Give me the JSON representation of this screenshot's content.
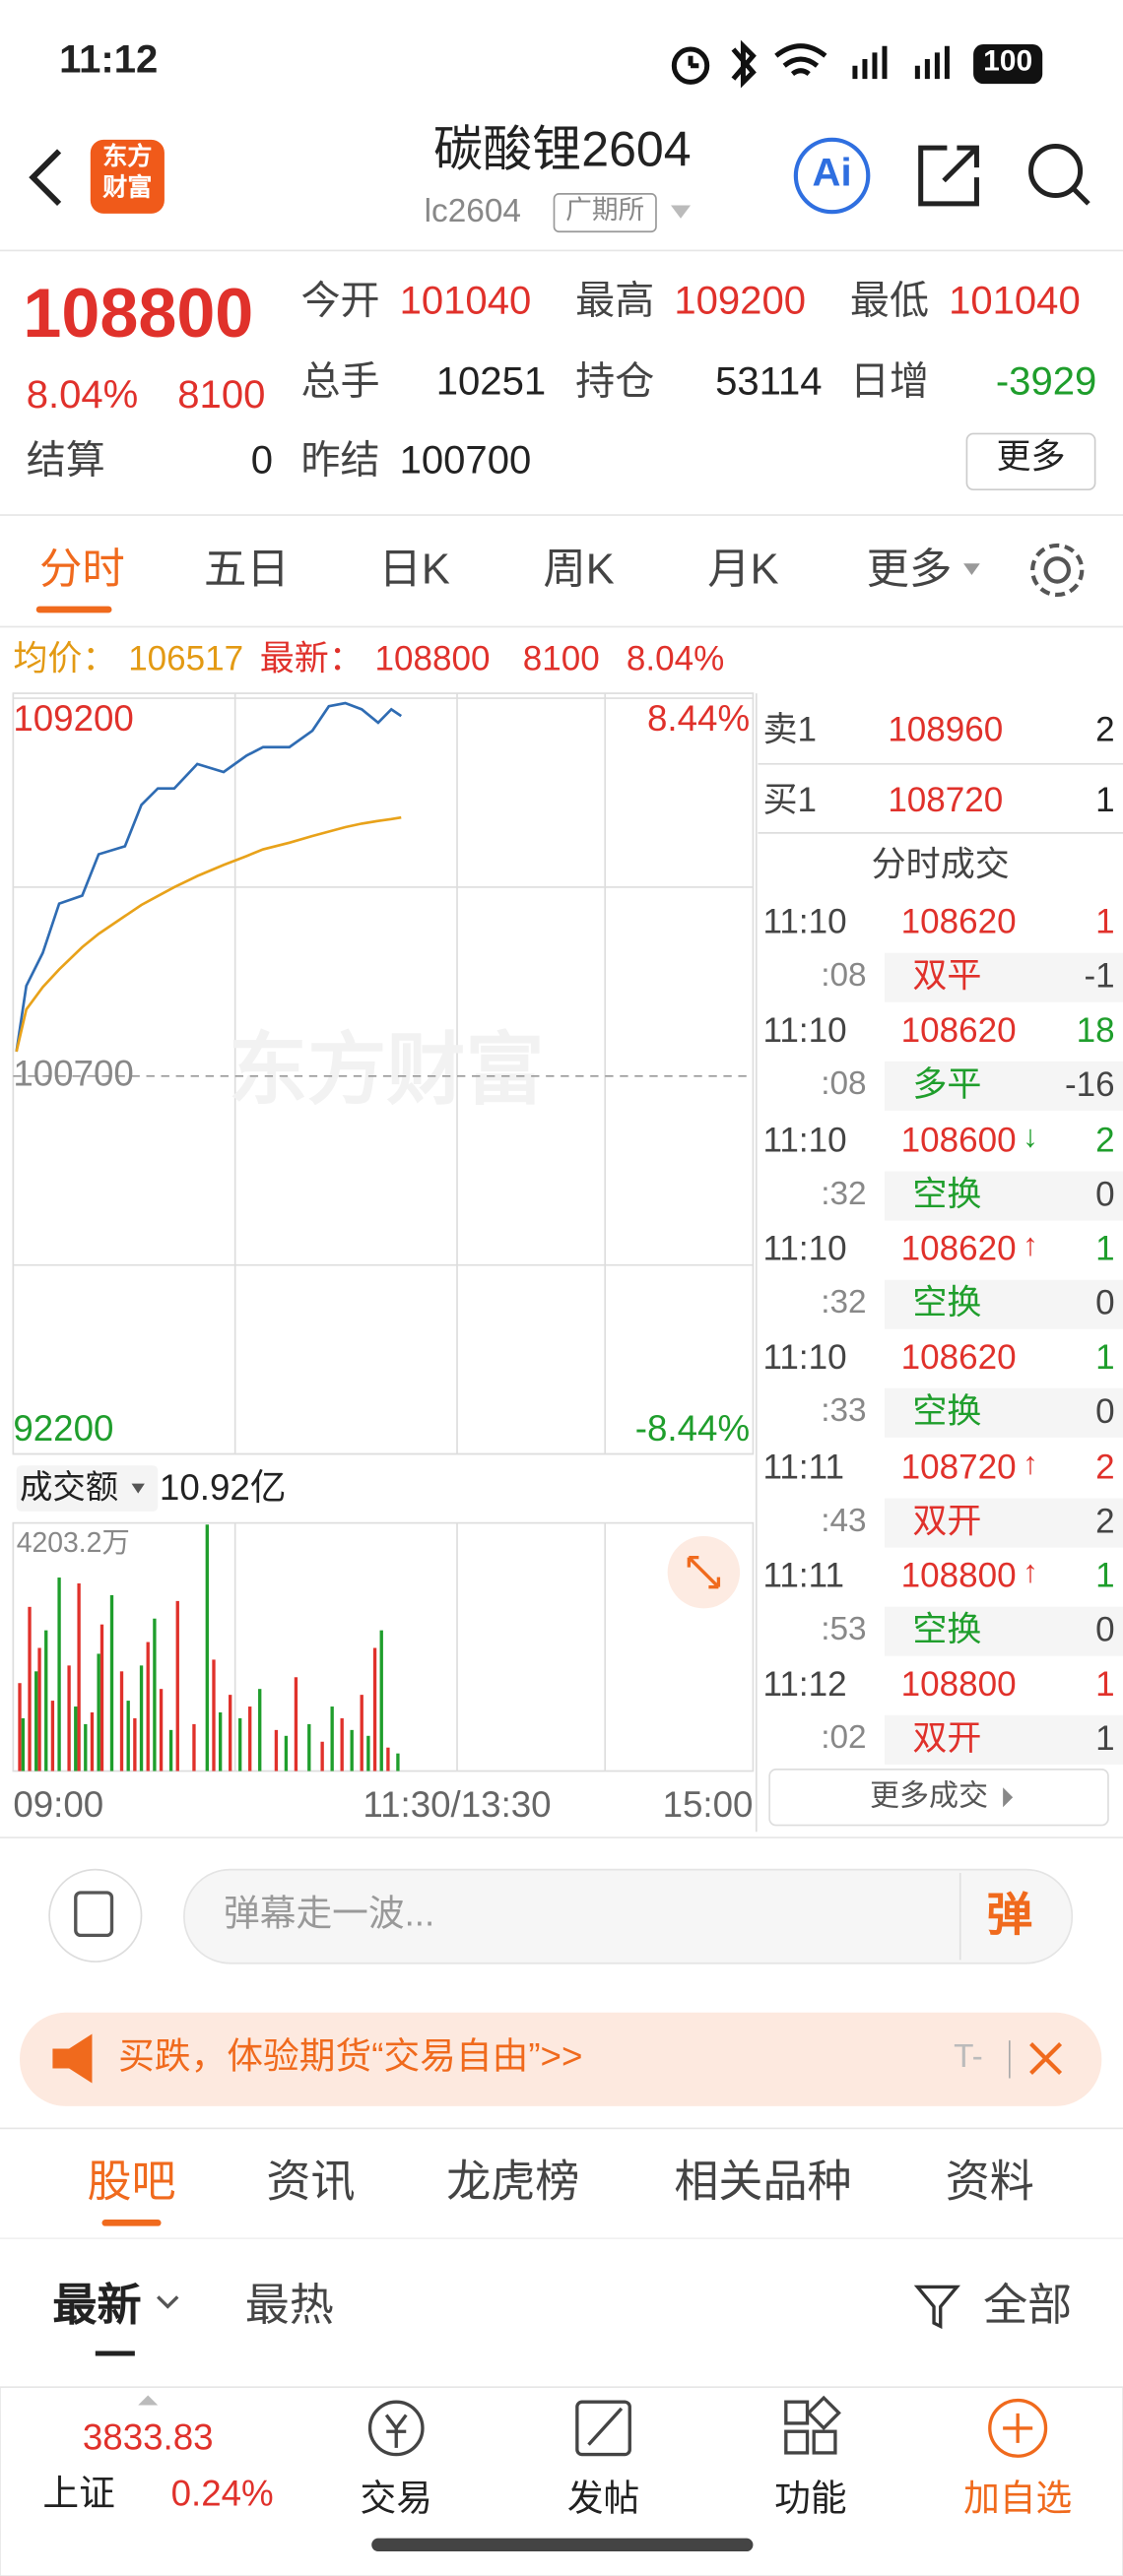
{
  "status": {
    "time": "11:12",
    "battery": "100"
  },
  "header": {
    "logo": [
      "东方",
      "财富"
    ],
    "title": "碳酸锂2604",
    "code": "lc2604",
    "exchange": "广期所"
  },
  "quote": {
    "price": "108800",
    "change_pct": "8.04%",
    "change": "8100",
    "fields": [
      {
        "label": "今开",
        "value": "101040"
      },
      {
        "label": "最高",
        "value": "109200"
      },
      {
        "label": "最低",
        "value": "101040"
      },
      {
        "label": "总手",
        "value": "10251"
      },
      {
        "label": "持仓",
        "value": "53114"
      },
      {
        "label": "日增",
        "value": "-3929"
      },
      {
        "label": "结算",
        "value": "0"
      },
      {
        "label": "昨结",
        "value": "100700"
      }
    ],
    "more": "更多"
  },
  "tabs": [
    "分时",
    "五日",
    "日K",
    "周K",
    "月K",
    "更多"
  ],
  "summary": {
    "avg_label": "均价：",
    "avg": "106517",
    "latest_label": "最新：",
    "latest": "108800",
    "change": "8100",
    "pct": "8.04%"
  },
  "chart_data": [
    {
      "type": "line",
      "watermark": "东方财富",
      "xlim": [
        0,
        225
      ],
      "xticks": [
        {
          "value": 0,
          "label": "09:00"
        },
        {
          "value": 135,
          "label": "11:30/13:30"
        },
        {
          "value": 225,
          "label": "15:00"
        }
      ],
      "ylim": [
        92200,
        109200
      ],
      "yticks": [
        92200,
        100700,
        109200
      ],
      "y2lim": [
        -8.44,
        8.44
      ],
      "y2ticks": [
        {
          "value": -8.44,
          "label": "-8.44%"
        },
        {
          "value": 8.44,
          "label": "8.44%"
        }
      ],
      "x": [
        1,
        4,
        9,
        14,
        21,
        26,
        34,
        39,
        44,
        49,
        56,
        64,
        71,
        76,
        84,
        91,
        96,
        101,
        106,
        111,
        115,
        118
      ],
      "series": [
        {
          "color": "#2f6cb3",
          "values": [
            101250,
            102730,
            103470,
            104580,
            104760,
            105690,
            105870,
            106800,
            107170,
            107170,
            107720,
            107540,
            107910,
            108100,
            108100,
            108470,
            109020,
            109090,
            108950,
            108650,
            108950,
            108800
          ]
        },
        {
          "color": "#e8a21a",
          "values": [
            101250,
            102200,
            102700,
            103100,
            103600,
            103900,
            104300,
            104550,
            104750,
            104950,
            105200,
            105450,
            105650,
            105800,
            105950,
            106100,
            106200,
            106300,
            106380,
            106440,
            106480,
            106517
          ]
        }
      ]
    },
    {
      "type": "bar",
      "label": "成交额",
      "total": "10.92亿",
      "xlim": [
        0,
        225
      ],
      "ylim": [
        0,
        4203.2
      ],
      "yticks": [
        {
          "value": 4203.2,
          "label": "4203.2万"
        }
      ],
      "series": [
        {
          "color": "#e0312b",
          "x": [
            2,
            5,
            8,
            12,
            17,
            20,
            24,
            27,
            33,
            37,
            41,
            45,
            50,
            55,
            61,
            66,
            72,
            80,
            86,
            94,
            100,
            106,
            110,
            114
          ],
          "values": [
            1500,
            2800,
            2100,
            1200,
            1800,
            3200,
            1000,
            2500,
            1700,
            900,
            2200,
            1400,
            2900,
            800,
            1900,
            1300,
            1100,
            700,
            1600,
            500,
            900,
            1300,
            2100,
            400
          ]
        },
        {
          "color": "#1f9e2c",
          "x": [
            3,
            7,
            10,
            14,
            19,
            22,
            26,
            30,
            35,
            39,
            43,
            48,
            59,
            63,
            69,
            75,
            83,
            90,
            97,
            103,
            108,
            112,
            117
          ],
          "values": [
            900,
            1700,
            2400,
            3300,
            1100,
            800,
            2000,
            3000,
            1200,
            1800,
            2600,
            700,
            4203.2,
            1000,
            900,
            1400,
            600,
            800,
            1100,
            700,
            600,
            2400,
            300
          ]
        }
      ]
    }
  ],
  "order_book": [
    {
      "side": "卖1",
      "price": "108960",
      "qty": "2"
    },
    {
      "side": "买1",
      "price": "108720",
      "qty": "1"
    }
  ],
  "trades_title": "分时成交",
  "trades": [
    {
      "time": "11:10",
      "price": "108620",
      "qty": "1",
      "qty_color": "red",
      "sec": ":08",
      "kind": "双平",
      "kind_color": "red",
      "delta": "-1"
    },
    {
      "time": "11:10",
      "price": "108620",
      "qty": "18",
      "qty_color": "green",
      "sec": ":08",
      "kind": "多平",
      "kind_color": "green",
      "delta": "-16"
    },
    {
      "time": "11:10",
      "price": "108600",
      "arrow": "↓",
      "arrow_color": "green",
      "qty": "2",
      "qty_color": "green",
      "sec": ":32",
      "kind": "空换",
      "kind_color": "green",
      "delta": "0"
    },
    {
      "time": "11:10",
      "price": "108620",
      "arrow": "↑",
      "arrow_color": "red",
      "qty": "1",
      "qty_color": "green",
      "sec": ":32",
      "kind": "空换",
      "kind_color": "green",
      "delta": "0"
    },
    {
      "time": "11:10",
      "price": "108620",
      "qty": "1",
      "qty_color": "green",
      "sec": ":33",
      "kind": "空换",
      "kind_color": "green",
      "delta": "0"
    },
    {
      "time": "11:11",
      "price": "108720",
      "arrow": "↑",
      "arrow_color": "red",
      "qty": "2",
      "qty_color": "red",
      "sec": ":43",
      "kind": "双开",
      "kind_color": "red",
      "delta": "2"
    },
    {
      "time": "11:11",
      "price": "108800",
      "arrow": "↑",
      "arrow_color": "red",
      "qty": "1",
      "qty_color": "green",
      "sec": ":53",
      "kind": "空换",
      "kind_color": "green",
      "delta": "0"
    },
    {
      "time": "11:12",
      "price": "108800",
      "qty": "1",
      "qty_color": "red",
      "sec": ":02",
      "kind": "双开",
      "kind_color": "red",
      "delta": "1"
    }
  ],
  "more_trades": "更多成交",
  "comment": {
    "placeholder": "弹幕走一波...",
    "button": "弹"
  },
  "banner": {
    "text": "买跌，体验期货“交易自由”>>",
    "tag": "T-"
  },
  "sections": [
    "股吧",
    "资讯",
    "龙虎榜",
    "相关品种",
    "资料"
  ],
  "sort": {
    "latest": "最新",
    "hot": "最热",
    "filter": "全部"
  },
  "bottom": {
    "index_value": "3833.83",
    "index_name": "上证",
    "index_pct": "0.24%",
    "nav": [
      "交易",
      "发帖",
      "功能",
      "加自选"
    ]
  }
}
